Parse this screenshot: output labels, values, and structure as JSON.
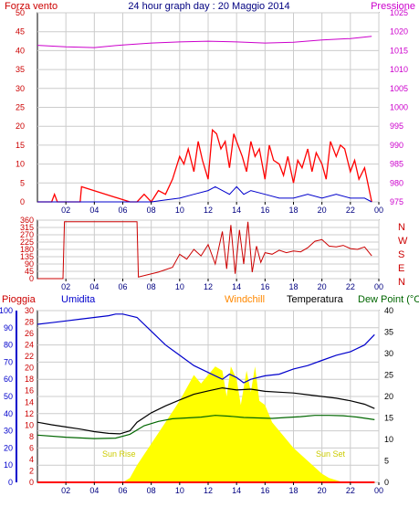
{
  "title": "24 hour graph day : 20 Maggio 2014",
  "colors": {
    "wind": "#ff0000",
    "gust": "#0000cc",
    "pressure": "#cc00cc",
    "direction": "#cc0000",
    "rain": "#ff0000",
    "humidity": "#0000cc",
    "windchill": "#ff8800",
    "temperature": "#000000",
    "dewpoint": "#006600",
    "solar": "#ffff00",
    "axis_left_top": "#cc0000",
    "axis_right_top": "#cc00cc",
    "axis_hum": "#0000cc",
    "grid": "#cccccc"
  },
  "chart_data": [
    {
      "type": "line",
      "name": "wind-pressure",
      "labels": {
        "left": "Forza vento",
        "right": "Pressione"
      },
      "x_ticks": [
        "02",
        "04",
        "06",
        "08",
        "10",
        "12",
        "14",
        "16",
        "18",
        "20",
        "22",
        "00"
      ],
      "y_left": {
        "ylim": [
          0,
          50
        ],
        "ticks": [
          "0",
          "5",
          "10",
          "15",
          "20",
          "25",
          "30",
          "35",
          "40",
          "45",
          "50"
        ]
      },
      "y_right": {
        "ylim": [
          975,
          1025
        ],
        "ticks": [
          "975",
          "980",
          "985",
          "990",
          "995",
          "1000",
          "1005",
          "1010",
          "1015",
          "1020",
          "1025"
        ]
      },
      "series": [
        {
          "key": "pressure",
          "axis": "right",
          "x": [
            0,
            2,
            4,
            6,
            8,
            10,
            12,
            14,
            16,
            18,
            20,
            22,
            23.5
          ],
          "values": [
            1016.4,
            1016.0,
            1015.8,
            1016.5,
            1017.0,
            1017.3,
            1017.5,
            1017.3,
            1017.0,
            1017.2,
            1017.8,
            1018.2,
            1018.8
          ]
        },
        {
          "key": "wind",
          "axis": "left",
          "x": [
            0,
            1,
            1.2,
            1.4,
            3.0,
            3.1,
            6.5,
            7.0,
            7.5,
            8.0,
            8.5,
            9.0,
            9.5,
            10.0,
            10.3,
            10.6,
            11.0,
            11.3,
            11.6,
            12.0,
            12.3,
            12.6,
            12.9,
            13.2,
            13.5,
            13.8,
            14.1,
            14.4,
            14.7,
            15.0,
            15.3,
            15.6,
            16.0,
            16.3,
            16.6,
            17.0,
            17.3,
            17.6,
            18.0,
            18.3,
            18.6,
            19.0,
            19.3,
            19.6,
            20.0,
            20.3,
            20.6,
            21.0,
            21.3,
            21.6,
            22.0,
            22.3,
            22.6,
            23.0,
            23.5
          ],
          "values": [
            0,
            0,
            2,
            0,
            0,
            4,
            0,
            0,
            2,
            0,
            3,
            2,
            6,
            12,
            10,
            14,
            8,
            16,
            11,
            6,
            19,
            18,
            14,
            16,
            9,
            18,
            15,
            12,
            8,
            16,
            12,
            14,
            6,
            15,
            11,
            10,
            7,
            12,
            5,
            11,
            9,
            14,
            8,
            13,
            10,
            6,
            16,
            12,
            15,
            14,
            8,
            11,
            6,
            9,
            0
          ]
        },
        {
          "key": "gust",
          "axis": "left",
          "x": [
            0,
            8,
            9,
            10,
            11,
            12,
            12.5,
            13,
            13.5,
            14,
            14.5,
            15,
            16,
            17,
            18,
            19,
            20,
            21,
            22,
            23,
            23.5
          ],
          "values": [
            0,
            0,
            0.5,
            1,
            2,
            3,
            4,
            3,
            2,
            4,
            2,
            3,
            2,
            1,
            1,
            2,
            1,
            2,
            1,
            1,
            0
          ]
        }
      ]
    },
    {
      "type": "line",
      "name": "wind-direction",
      "x_ticks": [
        "02",
        "04",
        "06",
        "08",
        "10",
        "12",
        "14",
        "16",
        "18",
        "20",
        "22",
        "00"
      ],
      "y_left": {
        "ylim": [
          0,
          360
        ],
        "ticks": [
          "0",
          "45",
          "90",
          "135",
          "180",
          "225",
          "270",
          "315",
          "360"
        ]
      },
      "compass": [
        "N",
        "W",
        "S",
        "E",
        "N"
      ],
      "series": [
        {
          "key": "direction",
          "x": [
            0,
            1.8,
            1.9,
            7.0,
            7.1,
            8.5,
            9.5,
            10.0,
            10.5,
            11.0,
            11.5,
            12.0,
            12.5,
            13.0,
            13.3,
            13.6,
            13.9,
            14.2,
            14.5,
            14.8,
            15.1,
            15.4,
            15.7,
            16.0,
            16.5,
            17.0,
            17.5,
            18.0,
            18.5,
            19.0,
            19.5,
            20.0,
            20.5,
            21.0,
            21.5,
            22.0,
            22.5,
            23.0,
            23.5
          ],
          "values": [
            0,
            0,
            350,
            350,
            10,
            40,
            70,
            150,
            120,
            180,
            140,
            210,
            90,
            290,
            60,
            330,
            30,
            300,
            90,
            350,
            40,
            200,
            100,
            160,
            150,
            175,
            160,
            170,
            165,
            190,
            230,
            240,
            200,
            195,
            205,
            185,
            180,
            195,
            140
          ]
        }
      ]
    },
    {
      "type": "line",
      "name": "temperature-humidity-rain",
      "labels": {
        "rain": "Pioggia",
        "humidity": "Umidita",
        "windchill": "Windchill",
        "temperature": "Temperatura",
        "dewpoint": "Dew Point (°C"
      },
      "annotations": {
        "sunrise": "Sun Rise",
        "sunset": "Sun Set"
      },
      "x_ticks": [
        "02",
        "04",
        "06",
        "08",
        "10",
        "12",
        "14",
        "16",
        "18",
        "20",
        "22",
        "00"
      ],
      "y_humidity": {
        "ylim": [
          0,
          100
        ],
        "ticks": [
          "0",
          "10",
          "20",
          "30",
          "40",
          "50",
          "60",
          "70",
          "80",
          "90",
          "100"
        ]
      },
      "y_rain": {
        "ylim": [
          0,
          30
        ],
        "ticks": [
          "0",
          "2",
          "4",
          "6",
          "8",
          "10",
          "12",
          "14",
          "16",
          "18",
          "20",
          "22",
          "24",
          "26",
          "28",
          "30"
        ]
      },
      "y_temp": {
        "ylim": [
          0,
          40
        ],
        "ticks": [
          "0",
          "5",
          "10",
          "15",
          "20",
          "25",
          "30",
          "35",
          "40"
        ]
      },
      "series": [
        {
          "key": "humidity",
          "axis": "humidity",
          "x": [
            0,
            1,
            2,
            3,
            4,
            5,
            5.5,
            6.0,
            7.0,
            8.0,
            9.0,
            10,
            11,
            12,
            12.5,
            13,
            13.5,
            14,
            14.5,
            15,
            16,
            17,
            18,
            19,
            20,
            21,
            22,
            23,
            23.7
          ],
          "values": [
            92,
            93,
            94,
            95,
            96,
            97,
            98,
            98,
            96,
            88,
            80,
            74,
            68,
            64,
            62,
            60,
            63,
            61,
            58,
            60,
            62,
            63,
            66,
            68,
            71,
            74,
            76,
            80,
            86
          ]
        },
        {
          "key": "temperature",
          "axis": "temp",
          "x": [
            0,
            1,
            2,
            3,
            4,
            5,
            5.8,
            6.5,
            7.0,
            8.0,
            9.0,
            10,
            11,
            12,
            13,
            14,
            15,
            16,
            17,
            18,
            19,
            20,
            21,
            22,
            23,
            23.7
          ],
          "values": [
            14,
            13.4,
            12.9,
            12.4,
            11.8,
            11.4,
            11.3,
            12.0,
            14.0,
            16.2,
            17.8,
            19.2,
            20.5,
            21.3,
            22.0,
            21.5,
            21.7,
            21.2,
            21.0,
            20.8,
            20.4,
            20.0,
            19.6,
            19.0,
            18.2,
            17.2
          ]
        },
        {
          "key": "dewpoint",
          "axis": "temp",
          "x": [
            0,
            2,
            4,
            5.5,
            6.5,
            7.5,
            8.5,
            9.5,
            10.5,
            11.5,
            12.5,
            13.5,
            14.5,
            15.5,
            16.5,
            17.5,
            18.5,
            19.5,
            20.5,
            21.5,
            22.5,
            23.7
          ],
          "values": [
            11,
            10.5,
            10.2,
            10.3,
            11.2,
            13.2,
            14.2,
            14.8,
            15.0,
            15.2,
            15.6,
            15.4,
            15.1,
            15.0,
            14.9,
            15.1,
            15.3,
            15.6,
            15.6,
            15.5,
            15.2,
            14.6
          ]
        },
        {
          "key": "windchill",
          "axis": "temp",
          "x": [
            0,
            23.7
          ],
          "values": [
            0,
            0
          ]
        },
        {
          "key": "rain",
          "axis": "rain",
          "x": [
            0,
            23.7
          ],
          "values": [
            0,
            0
          ]
        }
      ],
      "solar": {
        "x": [
          0,
          6.0,
          6.5,
          7,
          8,
          9,
          10,
          10.5,
          11,
          11.5,
          12,
          12.5,
          13,
          13.3,
          13.6,
          14,
          14.3,
          14.7,
          15,
          15.3,
          15.6,
          16,
          16.5,
          17,
          18,
          19,
          20,
          20.5,
          21,
          21.5,
          23.7
        ],
        "values": [
          0,
          0,
          1,
          4,
          9,
          14,
          19,
          22,
          25,
          23,
          25,
          27,
          26,
          20,
          27,
          24,
          18,
          26,
          21,
          27,
          19,
          18,
          14,
          12,
          8,
          5,
          2,
          1,
          0.5,
          0,
          0
        ]
      }
    }
  ]
}
